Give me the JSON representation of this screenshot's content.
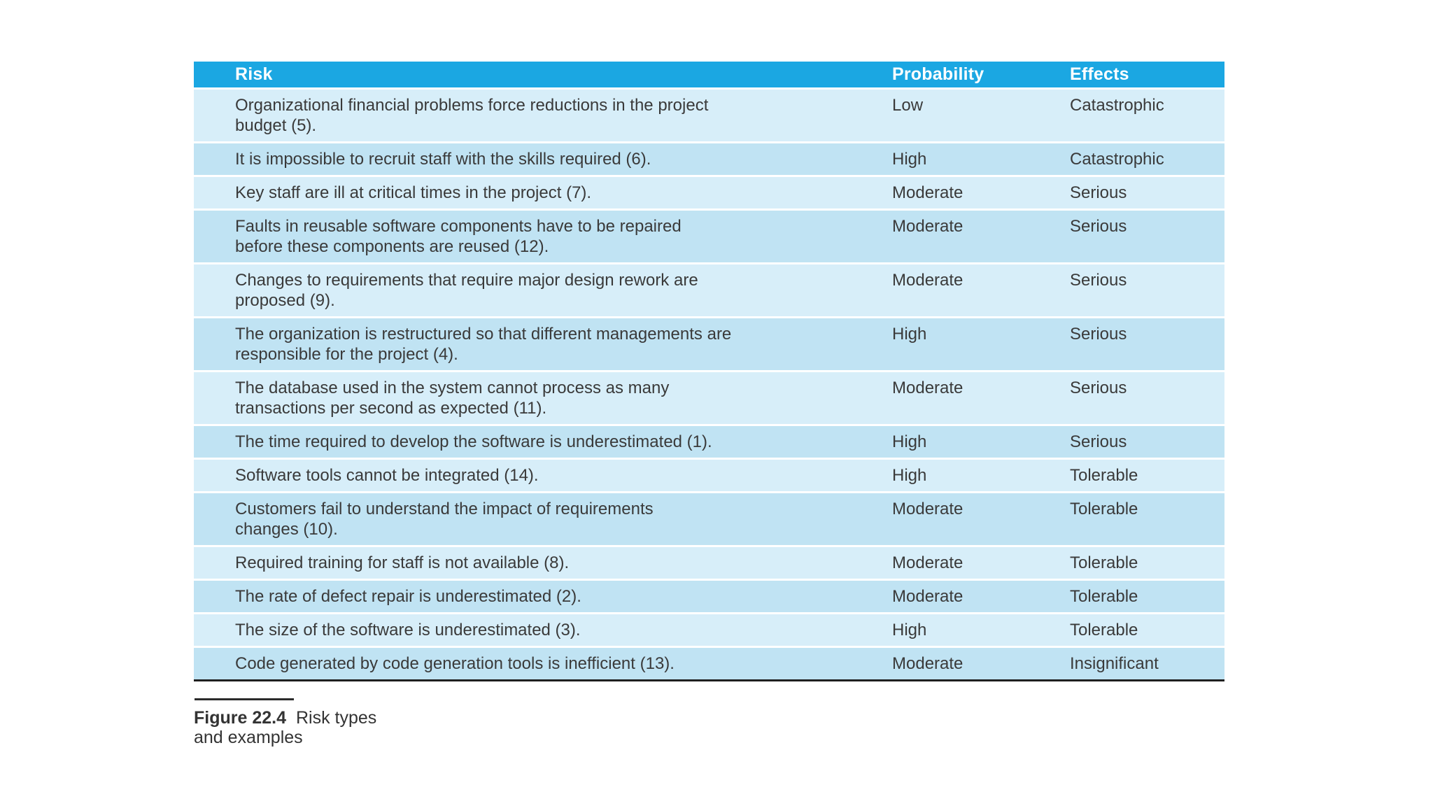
{
  "table": {
    "columns": [
      "Risk",
      "Probability",
      "Effects"
    ],
    "rows": [
      {
        "risk": "Organizational financial problems force reductions in the project\nbudget (5).",
        "probability": "Low",
        "effects": "Catastrophic",
        "shade": "light"
      },
      {
        "risk": "It is impossible to recruit staff with the skills required (6).",
        "probability": "High",
        "effects": "Catastrophic",
        "shade": "dark"
      },
      {
        "risk": "Key staff are ill at critical times in the project (7).",
        "probability": "Moderate",
        "effects": "Serious",
        "shade": "light"
      },
      {
        "risk": "Faults in reusable software components have to be repaired\nbefore these components are reused (12).",
        "probability": "Moderate",
        "effects": "Serious",
        "shade": "dark"
      },
      {
        "risk": "Changes to requirements that require major design rework are\nproposed (9).",
        "probability": "Moderate",
        "effects": "Serious",
        "shade": "light"
      },
      {
        "risk": "The organization is restructured so that different managements are\nresponsible for the project (4).",
        "probability": "High",
        "effects": "Serious",
        "shade": "dark"
      },
      {
        "risk": "The database used in the system cannot process as many\ntransactions per second as expected (11).",
        "probability": "Moderate",
        "effects": "Serious",
        "shade": "light"
      },
      {
        "risk": "The time required to develop the software is underestimated (1).",
        "probability": "High",
        "effects": "Serious",
        "shade": "dark"
      },
      {
        "risk": "Software tools cannot be integrated (14).",
        "probability": "High",
        "effects": "Tolerable",
        "shade": "light"
      },
      {
        "risk": "Customers fail to understand the impact of requirements\nchanges (10).",
        "probability": "Moderate",
        "effects": "Tolerable",
        "shade": "dark"
      },
      {
        "risk": "Required training for staff is not available (8).",
        "probability": "Moderate",
        "effects": "Tolerable",
        "shade": "light"
      },
      {
        "risk": "The rate of defect repair is underestimated (2).",
        "probability": "Moderate",
        "effects": "Tolerable",
        "shade": "dark"
      },
      {
        "risk": "The size of the software is underestimated (3).",
        "probability": "High",
        "effects": "Tolerable",
        "shade": "light"
      },
      {
        "risk": "Code generated by code generation tools is inefficient (13).",
        "probability": "Moderate",
        "effects": "Insignificant",
        "shade": "dark"
      }
    ]
  },
  "caption": {
    "label": "Figure 22.4",
    "line1": "Risk types",
    "line2": "and examples"
  },
  "colors": {
    "header_bg": "#1ba7e2",
    "header_text": "#ffffff",
    "row_light": "#d7eef9",
    "row_dark": "#c0e3f3",
    "body_text": "#3a3a3a",
    "table_bottom_border": "#1f1f1f",
    "caption_rule": "#2b2b2b",
    "caption_text": "#333333"
  }
}
